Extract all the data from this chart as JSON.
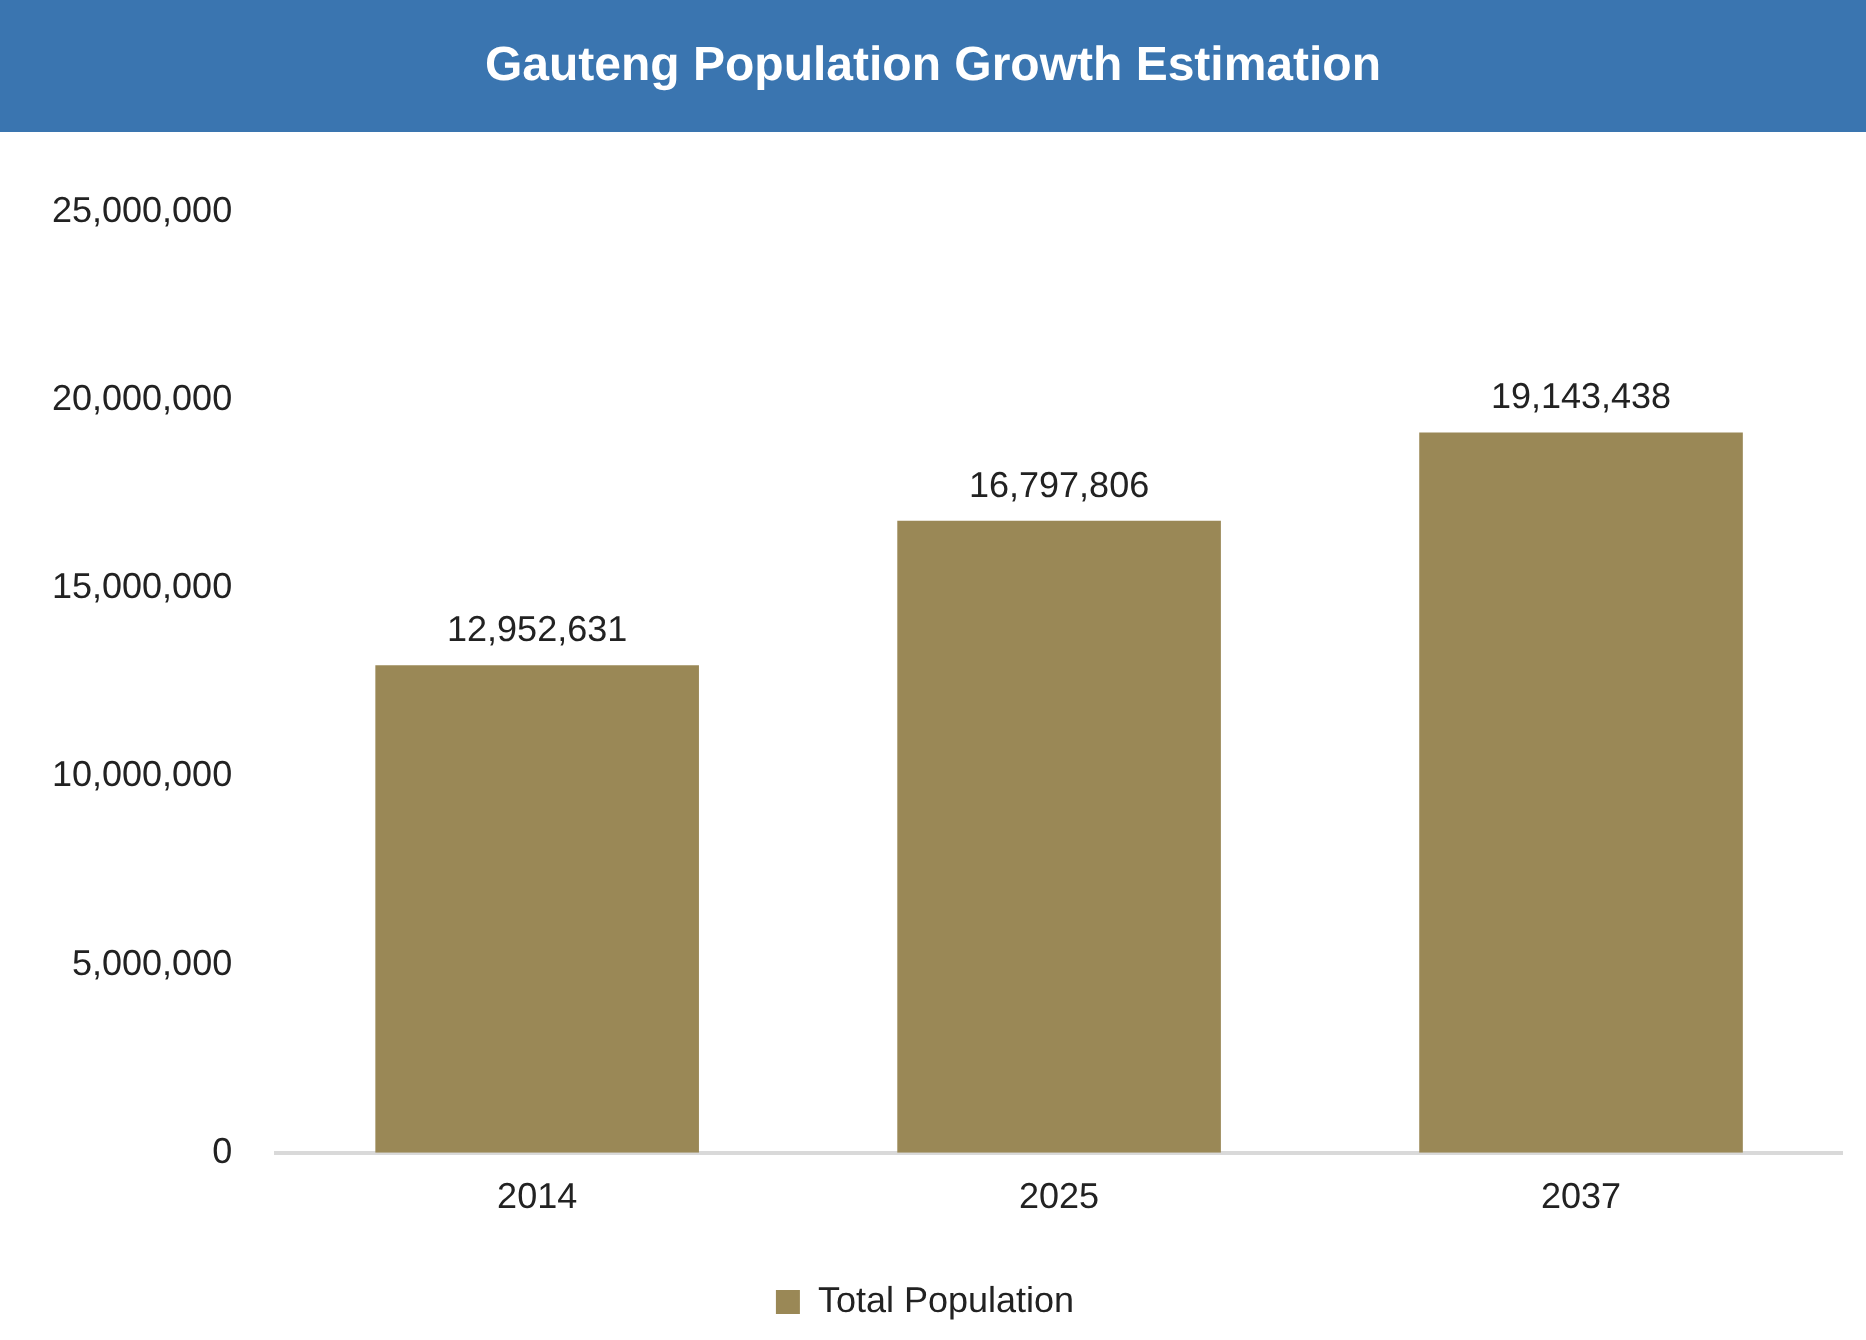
{
  "chart_data": {
    "type": "bar",
    "title": "Gauteng Population Growth Estimation",
    "categories": [
      "2014",
      "2025",
      "2037"
    ],
    "series": [
      {
        "name": "Total Population",
        "color": "#9a8856",
        "values": [
          12952631,
          16797806,
          19143438
        ],
        "value_labels": [
          "12,952,631",
          "16,797,806",
          "19,143,438"
        ]
      }
    ],
    "ylim": [
      0,
      25000000
    ],
    "yticks": [
      0,
      {
        "value": 5000000,
        "label": "5,000,000"
      },
      {
        "value": 10000000,
        "label": "10,000,000"
      },
      {
        "value": 15000000,
        "label": "15,000,000"
      },
      {
        "value": 20000000,
        "label": "20,000,000"
      },
      {
        "value": 25000000,
        "label": "25,000,000"
      }
    ],
    "grid": false,
    "legend": "bottom"
  }
}
